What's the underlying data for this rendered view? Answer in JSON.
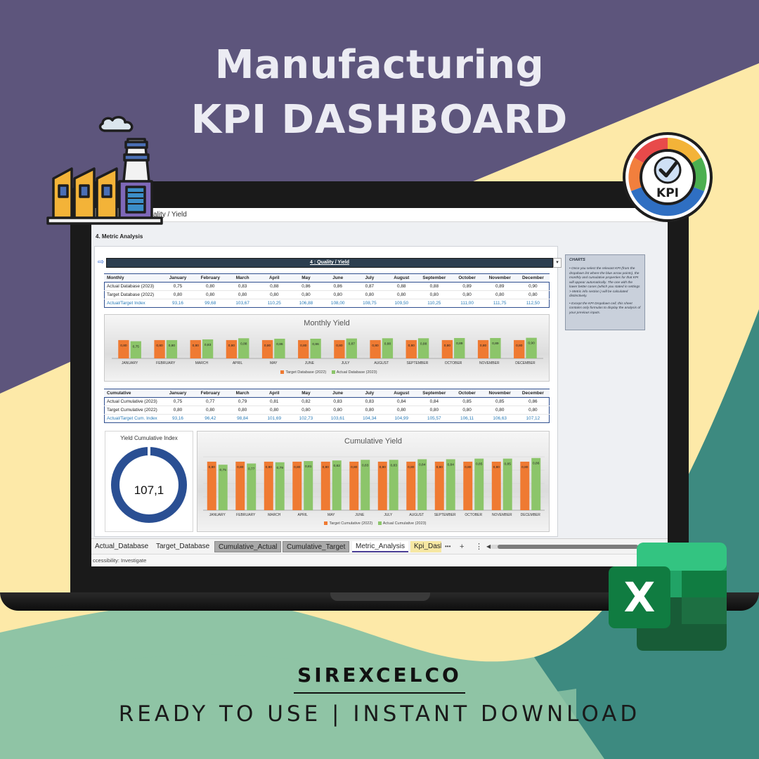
{
  "hero": {
    "title_line1": "Manufacturing",
    "title_line2": "KPI DASHBOARD"
  },
  "colors": {
    "hero_bg": "#5d557c",
    "cream": "#fde9a8",
    "teal": "#3d8a80",
    "sage": "#8fc4a5",
    "orange_series": "#ef7a32",
    "green_series": "#8cc56a",
    "gauge_blue": "#2a4f93"
  },
  "formula_bar": {
    "text": "ality / Yield"
  },
  "sheet": {
    "section_title": "4. Metric Analysis",
    "kpi_dropdown": "4 : Quality / Yield"
  },
  "months": [
    "January",
    "February",
    "March",
    "April",
    "May",
    "June",
    "July",
    "August",
    "September",
    "October",
    "November",
    "December"
  ],
  "monthly_table": {
    "header": "Monthly",
    "rows": [
      {
        "label": "Actual Database (2023)",
        "values": [
          "0,75",
          "0,80",
          "0,83",
          "0,88",
          "0,86",
          "0,86",
          "0,87",
          "0,88",
          "0,88",
          "0,89",
          "0,89",
          "0,90"
        ]
      },
      {
        "label": "Target Database (2022)",
        "values": [
          "0,80",
          "0,80",
          "0,80",
          "0,80",
          "0,80",
          "0,80",
          "0,80",
          "0,80",
          "0,80",
          "0,80",
          "0,80",
          "0,80"
        ]
      },
      {
        "label": "Actual/Target Index",
        "values": [
          "93,16",
          "99,68",
          "103,67",
          "110,25",
          "106,88",
          "108,00",
          "108,75",
          "109,50",
          "110,25",
          "111,00",
          "111,75",
          "112,50"
        ]
      }
    ]
  },
  "cumulative_table": {
    "header": "Cumulative",
    "rows": [
      {
        "label": "Actual Cumulative (2023)",
        "values": [
          "0,75",
          "0,77",
          "0,79",
          "0,81",
          "0,82",
          "0,83",
          "0,83",
          "0,84",
          "0,84",
          "0,85",
          "0,85",
          "0,86"
        ]
      },
      {
        "label": "Target Cumulative (2022)",
        "values": [
          "0,80",
          "0,80",
          "0,80",
          "0,80",
          "0,80",
          "0,80",
          "0,80",
          "0,80",
          "0,80",
          "0,80",
          "0,80",
          "0,80"
        ]
      },
      {
        "label": "Actual/Target Cum. Index",
        "values": [
          "93,16",
          "96,42",
          "98,84",
          "101,69",
          "102,73",
          "103,61",
          "104,34",
          "104,99",
          "105,57",
          "106,11",
          "106,63",
          "107,12"
        ]
      }
    ]
  },
  "gauge": {
    "title": "Yield Cumulative Index",
    "value": "107,1"
  },
  "charts_note": {
    "title": "CHARTS",
    "bullets": [
      "Once you select the relevant KPI (from the dropdown list where the blue arrow points), the monthly and cumulative properties for that KPI will appear automatically. The one with the lower better cases (which you stated in settings > Metric info section ) will be calculated distinctively.",
      "Except the KPI Dropdown cell, this sheet contains only formulas to display the analysis of your previous inputs."
    ]
  },
  "chart_data": [
    {
      "type": "bar",
      "title": "Monthly Yield",
      "categories": [
        "JANUARY",
        "FEBRUARY",
        "MARCH",
        "APRIL",
        "MAY",
        "JUNE",
        "JULY",
        "AUGUST",
        "SEPTEMBER",
        "OCTOBER",
        "NOVEMBER",
        "DECEMBER"
      ],
      "series": [
        {
          "name": "Target Database (2022)",
          "color": "#ef7a32",
          "values": [
            0.8,
            0.8,
            0.8,
            0.8,
            0.8,
            0.8,
            0.8,
            0.8,
            0.8,
            0.8,
            0.8,
            0.8
          ],
          "labels": [
            "0,80",
            "0,80",
            "0,80",
            "0,80",
            "0,80",
            "0,80",
            "0,80",
            "0,80",
            "0,80",
            "0,80",
            "0,80",
            "0,80"
          ]
        },
        {
          "name": "Actual Database (2023)",
          "color": "#8cc56a",
          "values": [
            0.75,
            0.8,
            0.83,
            0.88,
            0.86,
            0.86,
            0.87,
            0.88,
            0.88,
            0.89,
            0.89,
            0.9
          ],
          "labels": [
            "0,75",
            "0,80",
            "0,83",
            "0,88",
            "0,86",
            "0,86",
            "0,87",
            "0,88",
            "0,88",
            "0,89",
            "0,89",
            "0,90"
          ]
        }
      ],
      "legend": "bottom"
    },
    {
      "type": "bar",
      "title": "Cumulative Yield",
      "categories": [
        "JANUARY",
        "FEBRUARY",
        "MARCH",
        "APRIL",
        "MAY",
        "JUNE",
        "JULY",
        "AUGUST",
        "SEPTEMBER",
        "OCTOBER",
        "NOVEMBER",
        "DECEMBER"
      ],
      "series": [
        {
          "name": "Target Cumulative (2022)",
          "color": "#ef7a32",
          "values": [
            0.8,
            0.8,
            0.8,
            0.8,
            0.8,
            0.8,
            0.8,
            0.8,
            0.8,
            0.8,
            0.8,
            0.8
          ],
          "labels": [
            "0,80",
            "0,80",
            "0,80",
            "0,80",
            "0,80",
            "0,80",
            "0,80",
            "0,80",
            "0,80",
            "0,80",
            "0,80",
            "0,80"
          ]
        },
        {
          "name": "Actual Cumulative (2023)",
          "color": "#8cc56a",
          "values": [
            0.75,
            0.77,
            0.79,
            0.81,
            0.82,
            0.83,
            0.83,
            0.84,
            0.84,
            0.85,
            0.85,
            0.86
          ],
          "labels": [
            "0,75",
            "0,77",
            "0,79",
            "0,81",
            "0,82",
            "0,83",
            "0,83",
            "0,84",
            "0,84",
            "0,85",
            "0,85",
            "0,86"
          ]
        }
      ],
      "legend": "bottom"
    }
  ],
  "tabs": [
    {
      "label": "Actual_Database",
      "style": "plain"
    },
    {
      "label": "Target_Database",
      "style": "plain"
    },
    {
      "label": "Cumulative_Actual",
      "style": "gray"
    },
    {
      "label": "Cumulative_Target",
      "style": "gray"
    },
    {
      "label": "Metric_Analysis",
      "style": "active"
    },
    {
      "label": "Kpi_Dash",
      "style": "yellow"
    }
  ],
  "tab_controls": {
    "more": "•••",
    "add": "+",
    "menu": "⋮",
    "scroll_left": "◀"
  },
  "status_bar": {
    "text": "ccessibility: Investigate"
  },
  "icons": {
    "factory": "factory-icon",
    "kpi": "kpi-gauge-icon",
    "excel": "excel-logo-icon"
  },
  "kpi_badge_text": "KPI",
  "excel_letter": "X",
  "footer": {
    "brand": "SIREXCELCO",
    "tagline": "READY TO USE | INSTANT DOWNLOAD"
  }
}
